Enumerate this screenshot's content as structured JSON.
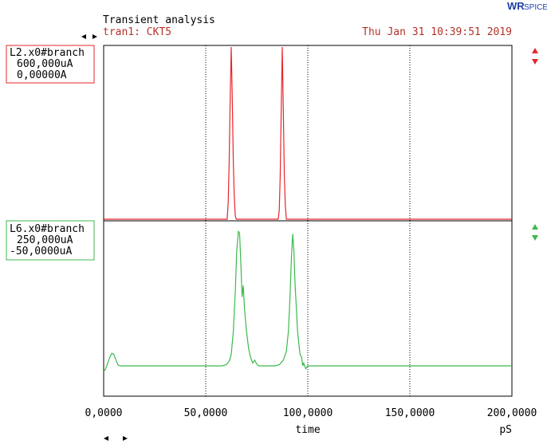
{
  "app": {
    "logo_text": "SPICE",
    "logo_mark": "WR"
  },
  "header": {
    "title": "Transient analysis",
    "subtitle": "tran1: CKT5",
    "timestamp": "Thu Jan 31 10:39:51 2019"
  },
  "colors": {
    "trace1": "#e8262b",
    "trace2": "#3cb94c",
    "plot_border": "#000000",
    "grid": "#000000",
    "header_text": "#b5312a",
    "logo_blue": "#1e3ea8"
  },
  "x_axis": {
    "label": "time",
    "unit": "pS",
    "tick_labels": [
      "0,0000",
      "50,0000",
      "100,0000",
      "150,0000",
      "200,0000"
    ],
    "ticks": [
      0,
      50000,
      100000,
      150000,
      200000
    ],
    "range": [
      0,
      200000
    ]
  },
  "chart_data": [
    {
      "type": "line",
      "series": [
        {
          "name": "L2.x0#branch",
          "color": "#e8262b",
          "x": [
            0,
            60500,
            61000,
            61500,
            62000,
            62500,
            63000,
            63500,
            64000,
            64500,
            65000,
            65500,
            66000,
            85500,
            86000,
            86500,
            87000,
            87500,
            88000,
            88500,
            89000,
            89500,
            90000,
            90500,
            91000,
            200000
          ],
          "y": [
            0,
            0,
            60000,
            200000,
            420000,
            600000,
            420000,
            200000,
            80000,
            10000,
            0,
            0,
            0,
            0,
            30000,
            150000,
            380000,
            600000,
            380000,
            150000,
            50000,
            0,
            0,
            0,
            0,
            0
          ]
        }
      ],
      "ylabel_top": "600,000uA",
      "ylabel_bottom": "0,00000A",
      "ylim": [
        0,
        600000
      ],
      "xlim": [
        0,
        200000
      ],
      "grid": true
    },
    {
      "type": "line",
      "series": [
        {
          "name": "L6.x0#branch",
          "color": "#3cb94c",
          "x": [
            0,
            1000,
            2000,
            3000,
            4000,
            5000,
            6000,
            7000,
            8000,
            10000,
            55000,
            58000,
            60000,
            61500,
            62500,
            63500,
            64500,
            65200,
            66000,
            66600,
            67200,
            67800,
            68400,
            69000,
            70000,
            71000,
            72000,
            73000,
            74000,
            75000,
            76000,
            80000,
            84000,
            86000,
            88000,
            89500,
            90500,
            91300,
            92000,
            92600,
            93200,
            93800,
            94400,
            95000,
            95600,
            96200,
            97000,
            97500,
            98000,
            99000,
            100000,
            102000,
            110000,
            200000
          ],
          "y": [
            -10,
            -5,
            5,
            15,
            22,
            20,
            10,
            2,
            0,
            0,
            0,
            0,
            2,
            8,
            20,
            60,
            130,
            200,
            235,
            230,
            180,
            120,
            140,
            100,
            60,
            30,
            15,
            5,
            10,
            3,
            0,
            0,
            0,
            2,
            10,
            25,
            60,
            120,
            190,
            230,
            200,
            140,
            100,
            60,
            40,
            20,
            15,
            0,
            5,
            -5,
            0,
            0,
            0,
            0
          ]
        }
      ],
      "ylabel_top": "250,000uA",
      "ylabel_bottom": "-50,0000uA",
      "ylim": [
        -50,
        250
      ],
      "xlim": [
        0,
        200000
      ],
      "grid": true
    }
  ]
}
